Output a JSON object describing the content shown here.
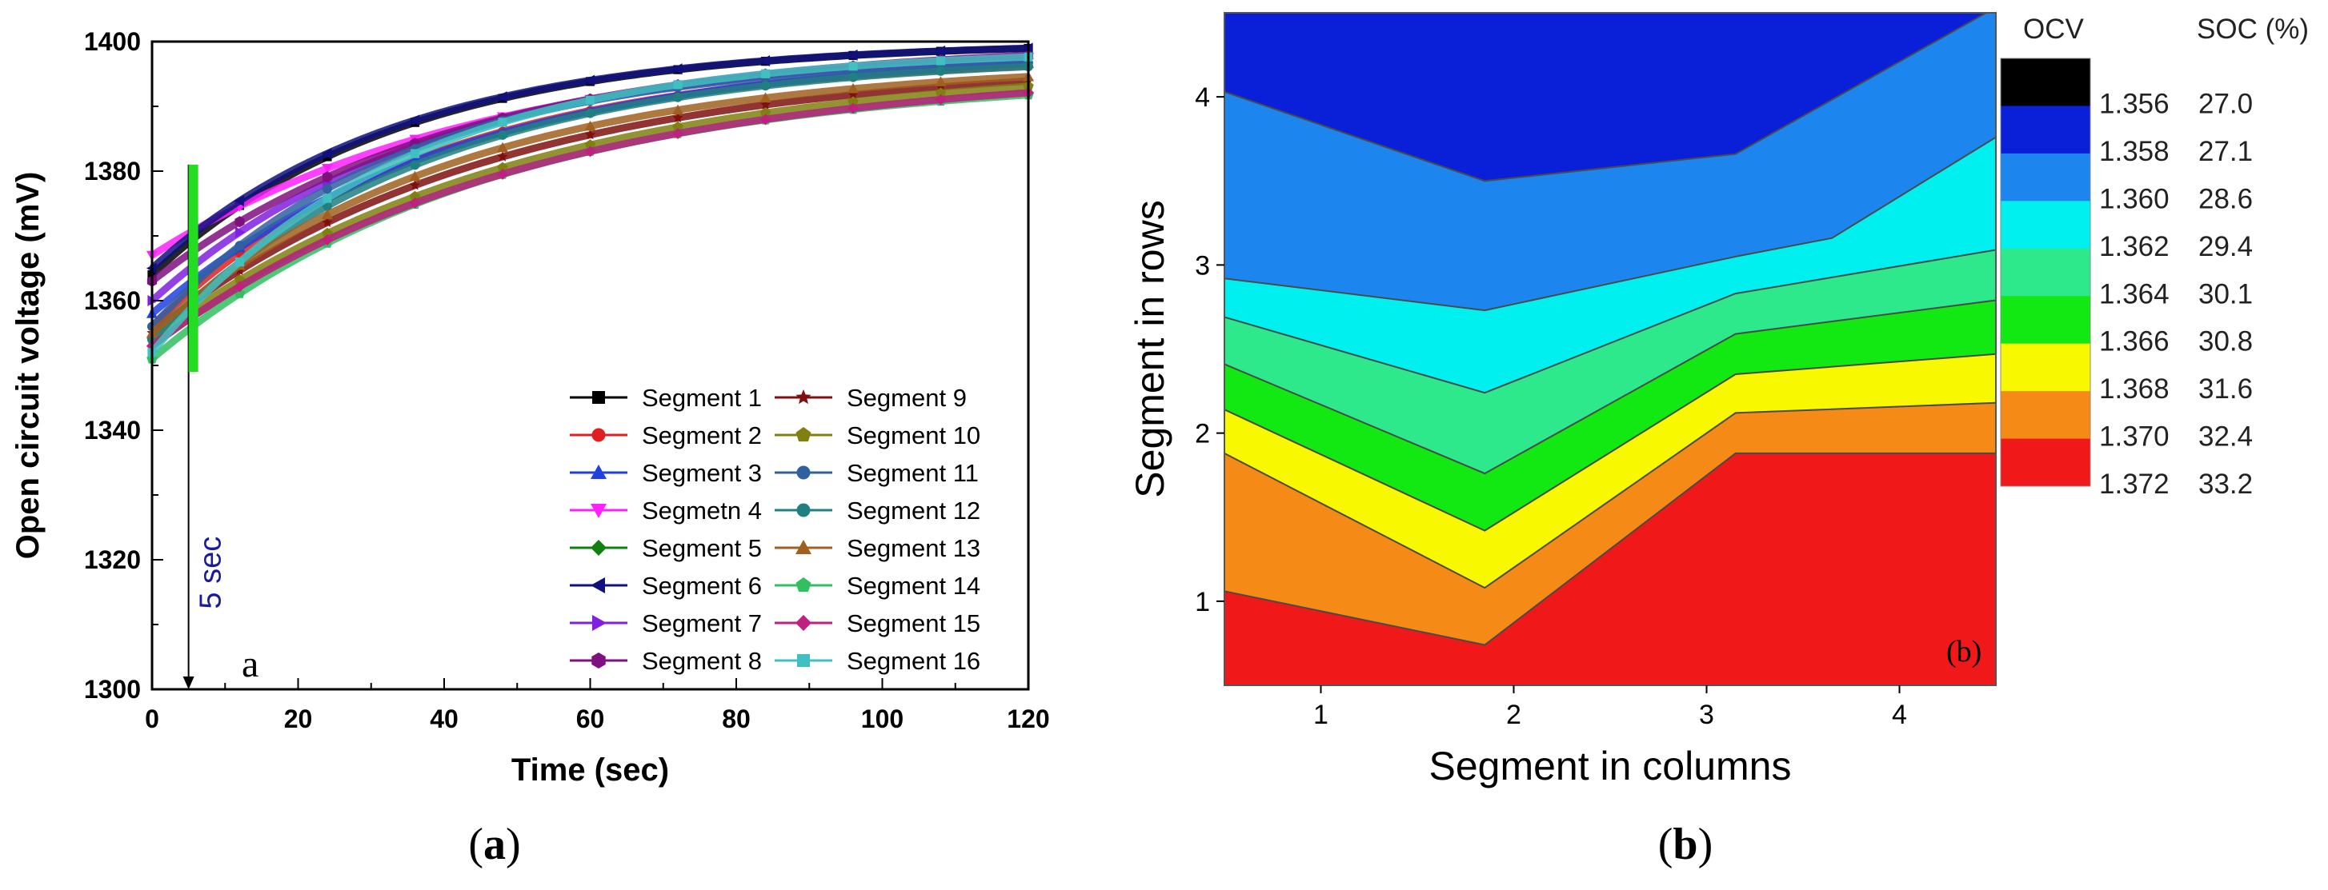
{
  "chart_data": [
    {
      "type": "scatter",
      "panel_label": "a",
      "caption": "(a)",
      "caption_letter": "a",
      "xlabel": "Time (sec)",
      "ylabel": "Open circuit voltage (mV)",
      "xlim": [
        0,
        120
      ],
      "ylim": [
        1300,
        1400
      ],
      "xticks": [
        "0",
        "20",
        "40",
        "60",
        "80",
        "100",
        "120"
      ],
      "yticks": [
        "1300",
        "1320",
        "1340",
        "1360",
        "1380",
        "1400"
      ],
      "annotation": {
        "text": "5 sec",
        "x": 5,
        "bar_range": [
          1349,
          1381
        ]
      },
      "legend_position": "bottom-right",
      "series": [
        {
          "name": "Segment 1",
          "color": "#000000",
          "marker": "square",
          "start": 1364,
          "end": 1400
        },
        {
          "name": "Segment 2",
          "color": "#e02020",
          "marker": "circle",
          "start": 1356,
          "end": 1398
        },
        {
          "name": "Segment 3",
          "color": "#2040e0",
          "marker": "triangle-up",
          "start": 1358,
          "end": 1399
        },
        {
          "name": "Segmetn 4",
          "color": "#ff20ff",
          "marker": "triangle-down",
          "start": 1367,
          "end": 1400
        },
        {
          "name": "Segment 5",
          "color": "#108010",
          "marker": "diamond",
          "start": 1353,
          "end": 1396
        },
        {
          "name": "Segment 6",
          "color": "#101080",
          "marker": "triangle-left",
          "start": 1365,
          "end": 1400
        },
        {
          "name": "Segment 7",
          "color": "#8020e0",
          "marker": "triangle-right",
          "start": 1360,
          "end": 1399
        },
        {
          "name": "Segment 8",
          "color": "#801080",
          "marker": "hexagon",
          "start": 1363,
          "end": 1400
        },
        {
          "name": "Segment 9",
          "color": "#801010",
          "marker": "star",
          "start": 1355,
          "end": 1397
        },
        {
          "name": "Segment 10",
          "color": "#808010",
          "marker": "pentagon",
          "start": 1354,
          "end": 1397
        },
        {
          "name": "Segment 11",
          "color": "#3060a0",
          "marker": "circle-half",
          "start": 1356,
          "end": 1398
        },
        {
          "name": "Segment 12",
          "color": "#208080",
          "marker": "circle",
          "start": 1354,
          "end": 1398
        },
        {
          "name": "Segment 13",
          "color": "#a06020",
          "marker": "triangle-up",
          "start": 1355,
          "end": 1397
        },
        {
          "name": "Segment 14",
          "color": "#30c060",
          "marker": "pentagon",
          "start": 1351,
          "end": 1395
        },
        {
          "name": "Segment 15",
          "color": "#c02080",
          "marker": "diamond",
          "start": 1353,
          "end": 1396
        },
        {
          "name": "Segment 16",
          "color": "#40c0c0",
          "marker": "square",
          "start": 1352,
          "end": 1399
        }
      ]
    },
    {
      "type": "contour",
      "panel_label": "(b)",
      "caption": "(b)",
      "caption_letter": "b",
      "xlabel": "Segment in columns",
      "ylabel": "Segment in rows",
      "xlim": [
        0.5,
        4.5
      ],
      "ylim": [
        0.5,
        4.5
      ],
      "xticks": [
        "1",
        "2",
        "3",
        "4"
      ],
      "yticks": [
        "1",
        "2",
        "3",
        "4"
      ],
      "legend_headers": {
        "ocv": "OCV",
        "soc": "SOC (%)"
      },
      "levels": [
        {
          "ocv": "1.356",
          "soc": "27.0",
          "color": "#000000"
        },
        {
          "ocv": "1.358",
          "soc": "27.1",
          "color": "#0a1fd8"
        },
        {
          "ocv": "1.360",
          "soc": "28.6",
          "color": "#1c86ee"
        },
        {
          "ocv": "1.362",
          "soc": "29.4",
          "color": "#00f0f0"
        },
        {
          "ocv": "1.364",
          "soc": "30.1",
          "color": "#2ee88c"
        },
        {
          "ocv": "1.366",
          "soc": "30.8",
          "color": "#12e812"
        },
        {
          "ocv": "1.368",
          "soc": "31.6",
          "color": "#f8f800"
        },
        {
          "ocv": "1.370",
          "soc": "32.4",
          "color": "#f68a16"
        },
        {
          "ocv": "1.372",
          "soc": "33.2",
          "color": "#f01818"
        }
      ],
      "boundaries": [
        {
          "upper_level": "1.358",
          "lower_level": "1.360",
          "points": [
            [
              0.5,
              4.03
            ],
            [
              1.85,
              3.5
            ],
            [
              3.15,
              3.66
            ],
            [
              4.45,
              4.5
            ]
          ]
        },
        {
          "upper_level": "1.360",
          "lower_level": "1.362",
          "points": [
            [
              0.5,
              2.92
            ],
            [
              1.85,
              2.73
            ],
            [
              3.15,
              3.05
            ],
            [
              3.65,
              3.16
            ],
            [
              4.5,
              3.76
            ]
          ]
        },
        {
          "upper_level": "1.362",
          "lower_level": "1.364",
          "points": [
            [
              0.5,
              2.69
            ],
            [
              1.85,
              2.24
            ],
            [
              3.15,
              2.83
            ],
            [
              4.5,
              3.09
            ]
          ]
        },
        {
          "upper_level": "1.364",
          "lower_level": "1.366",
          "points": [
            [
              0.5,
              2.41
            ],
            [
              1.85,
              1.76
            ],
            [
              3.15,
              2.59
            ],
            [
              4.5,
              2.79
            ]
          ]
        },
        {
          "upper_level": "1.366",
          "lower_level": "1.368",
          "points": [
            [
              0.5,
              2.14
            ],
            [
              1.85,
              1.42
            ],
            [
              3.15,
              2.35
            ],
            [
              4.5,
              2.47
            ]
          ]
        },
        {
          "upper_level": "1.368",
          "lower_level": "1.370",
          "points": [
            [
              0.5,
              1.88
            ],
            [
              1.85,
              1.08
            ],
            [
              3.15,
              2.12
            ],
            [
              4.5,
              2.18
            ]
          ]
        },
        {
          "upper_level": "1.370",
          "lower_level": "1.372",
          "points": [
            [
              0.5,
              1.06
            ],
            [
              1.85,
              0.74
            ],
            [
              3.15,
              1.88
            ],
            [
              4.5,
              1.88
            ]
          ]
        }
      ]
    }
  ]
}
